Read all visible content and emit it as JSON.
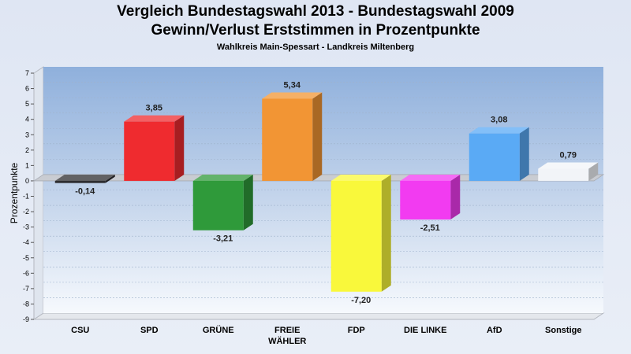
{
  "chart_data": {
    "type": "bar",
    "title": "Vergleich Bundestagswahl 2013 - Bundestagswahl 2009",
    "subtitle": "Gewinn/Verlust Erststimmen in Prozentpunkte",
    "caption": "Wahlkreis Main-Spessart - Landkreis Miltenberg",
    "ylabel": "Prozentpunkte",
    "xlabel": "",
    "ylim": [
      -9,
      7
    ],
    "yticks": [
      "7",
      "6",
      "5",
      "4",
      "3",
      "2",
      "1",
      "0",
      "-1",
      "-2",
      "-3",
      "-4",
      "-5",
      "-6",
      "-7",
      "-8",
      "-9"
    ],
    "categories": [
      "CSU",
      "SPD",
      "GRÜNE",
      "FREIE WÄHLER",
      "FDP",
      "DIE LINKE",
      "AfD",
      "Sonstige"
    ],
    "category_lines": [
      [
        "CSU"
      ],
      [
        "SPD"
      ],
      [
        "GRÜNE"
      ],
      [
        "FREIE",
        "WÄHLER"
      ],
      [
        "FDP"
      ],
      [
        "DIE LINKE"
      ],
      [
        "AfD"
      ],
      [
        "Sonstige"
      ]
    ],
    "values": [
      -0.14,
      3.85,
      -3.21,
      5.34,
      -7.2,
      -2.51,
      3.08,
      0.79
    ],
    "value_labels": [
      "-0,14",
      "3,85",
      "-3,21",
      "5,34",
      "-7,20",
      "-2,51",
      "3,08",
      "0,79"
    ],
    "colors": [
      "#2d2d30",
      "#ef2b2f",
      "#2f9a3a",
      "#f29534",
      "#f9f83b",
      "#f23bf1",
      "#5aaaf5",
      "#f2f4f8"
    ],
    "grid": true,
    "legend": "none"
  }
}
